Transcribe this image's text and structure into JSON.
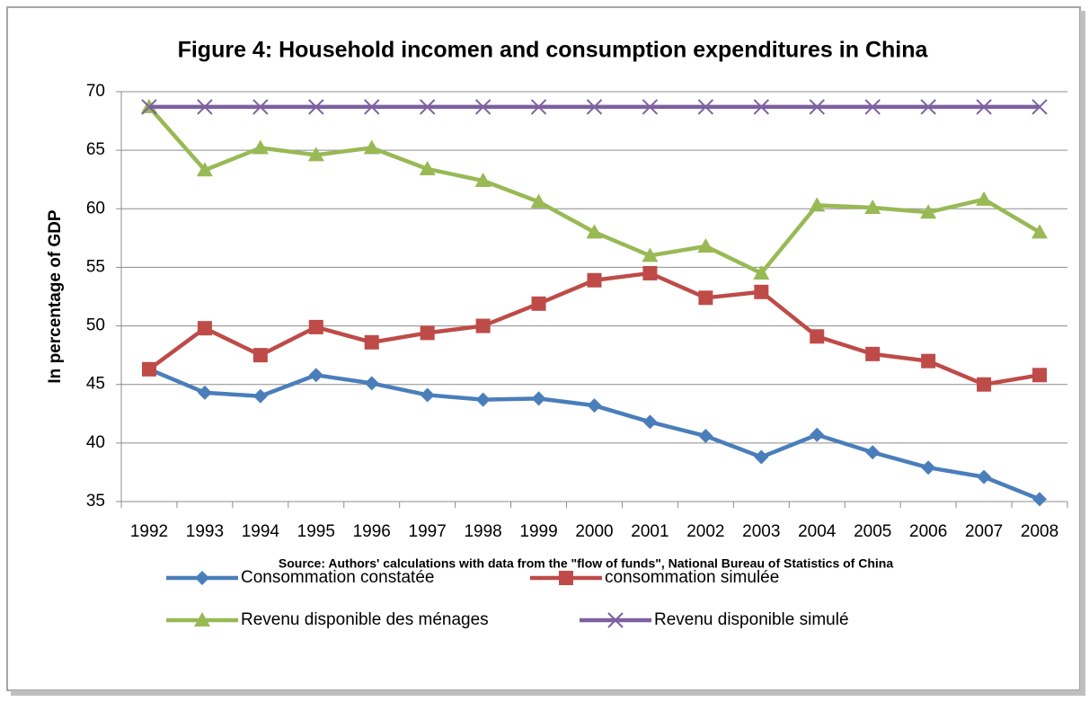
{
  "chart_data": {
    "type": "line",
    "title": "Figure 4: Household incomen and consumption expenditures in China",
    "y_label": "In percentage of GDP",
    "source": "Source: Authors' calculations with data from the \"flow of funds\", National Bureau of Statistics of China",
    "categories": [
      "1992",
      "1993",
      "1994",
      "1995",
      "1996",
      "1997",
      "1998",
      "1999",
      "2000",
      "2001",
      "2002",
      "2003",
      "2004",
      "2005",
      "2006",
      "2007",
      "2008"
    ],
    "series": [
      {
        "name": "Consommation constatée",
        "color": "#4a7ebb",
        "marker": "diamond",
        "values": [
          46.3,
          44.3,
          44.0,
          45.8,
          45.1,
          44.1,
          43.7,
          43.8,
          43.2,
          41.8,
          40.6,
          38.8,
          40.7,
          39.2,
          37.9,
          37.1,
          35.2
        ]
      },
      {
        "name": "consommation simulée",
        "color": "#be4b48",
        "marker": "square",
        "values": [
          46.3,
          49.8,
          47.5,
          49.9,
          48.6,
          49.4,
          50.0,
          51.9,
          53.9,
          54.5,
          52.4,
          52.9,
          49.1,
          47.6,
          47.0,
          45.0,
          45.8
        ]
      },
      {
        "name": "Revenu disponible des ménages",
        "color": "#98b954",
        "marker": "triangle",
        "values": [
          68.7,
          63.3,
          65.2,
          64.6,
          65.2,
          63.4,
          62.4,
          60.6,
          58.0,
          56.0,
          56.8,
          54.5,
          60.3,
          60.1,
          59.7,
          60.8,
          58.0
        ]
      },
      {
        "name": "Revenu disponible simulé",
        "color": "#7d60a0",
        "marker": "x",
        "values": [
          68.7,
          68.7,
          68.7,
          68.7,
          68.7,
          68.7,
          68.7,
          68.7,
          68.7,
          68.7,
          68.7,
          68.7,
          68.7,
          68.7,
          68.7,
          68.7,
          68.7
        ]
      }
    ],
    "ylim": [
      35,
      70
    ],
    "yticks": [
      35,
      40,
      45,
      50,
      55,
      60,
      65,
      70
    ],
    "grid": true,
    "legend": "bottom"
  }
}
